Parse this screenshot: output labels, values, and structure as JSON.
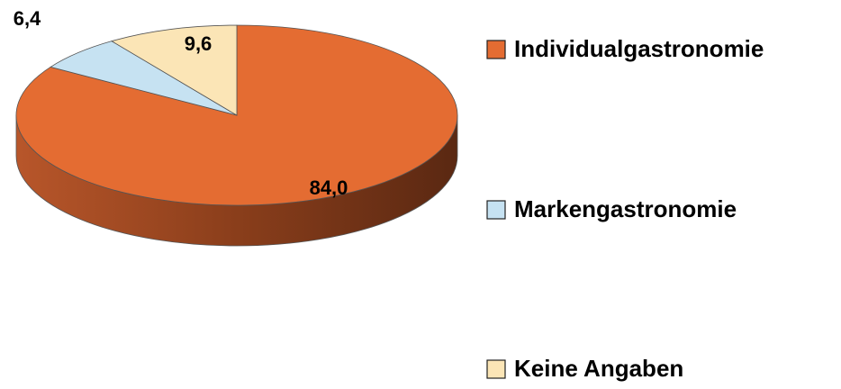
{
  "chart_data": {
    "type": "pie3d",
    "categories": [
      "Individualgastronomie",
      "Markengastronomie",
      "Keine Angaben"
    ],
    "values": [
      84.0,
      6.4,
      9.6
    ],
    "value_labels": [
      "84,0",
      "6,4",
      "9,6"
    ],
    "colors": [
      "#E46C32",
      "#C6E2F2",
      "#FBE5B6"
    ],
    "legend": "right"
  }
}
